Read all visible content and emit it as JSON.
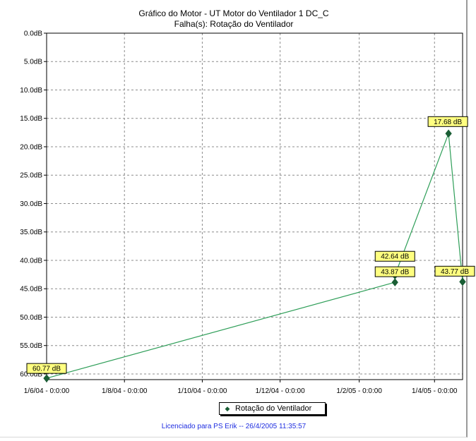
{
  "window": {
    "title_line1": "Gráfico do Motor - UT Motor do Ventilador 1 DC_C",
    "title_line2": "Falha(s): Rotação do Ventilador",
    "footer": "Licenciado para PS Erik -- 26/4/2005 11:35:57"
  },
  "colors": {
    "series_line": "#2e9e58",
    "marker": "#1a5e35",
    "label_fill": "#ffff80",
    "grid": "#8c8c8c",
    "footer_text": "#1f2ee0"
  },
  "chart_data": {
    "type": "line",
    "title": "Gráfico do Motor - UT Motor do Ventilador 1 DC_C",
    "subtitle": "Falha(s): Rotação do Ventilador",
    "xlabel": "",
    "ylabel": "",
    "y_inverted": true,
    "ylim": [
      0,
      61
    ],
    "y_ticks": [
      "0.0dB",
      "5.0dB",
      "10.0dB",
      "15.0dB",
      "20.0dB",
      "25.0dB",
      "30.0dB",
      "35.0dB",
      "40.0dB",
      "45.0dB",
      "50.0dB",
      "55.0dB",
      "60.0dB"
    ],
    "y_tick_values": [
      0,
      5,
      10,
      15,
      20,
      25,
      30,
      35,
      40,
      45,
      50,
      55,
      60
    ],
    "x_ticks": [
      "1/6/04 - 0:0:00",
      "1/8/04 - 0:0:00",
      "1/10/04 - 0:0:00",
      "1/12/04 - 0:0:00",
      "1/2/05 - 0:0:00",
      "1/4/05 - 0:0:00"
    ],
    "x_tick_dates": [
      "2004-06-01",
      "2004-08-01",
      "2004-10-01",
      "2004-12-01",
      "2005-02-01",
      "2005-04-01"
    ],
    "xlim": [
      "2004-06-01",
      "2005-04-23"
    ],
    "grid": true,
    "legend_position": "bottom-center",
    "series": [
      {
        "name": "Rotação do Ventilador",
        "points": [
          {
            "x": "2004-06-01",
            "y": 60.77,
            "label": "60.77 dB"
          },
          {
            "x": "2005-03-01",
            "y": 43.87,
            "label": "43.87 dB"
          },
          {
            "x": "2005-03-01",
            "y": 42.64,
            "label": "42.64 dB"
          },
          {
            "x": "2005-04-12",
            "y": 17.68,
            "label": "17.68 dB"
          },
          {
            "x": "2005-04-23",
            "y": 43.77,
            "label": "43.77 dB"
          },
          {
            "x": "2005-04-23",
            "y": 43.77,
            "label": ""
          }
        ]
      }
    ]
  }
}
